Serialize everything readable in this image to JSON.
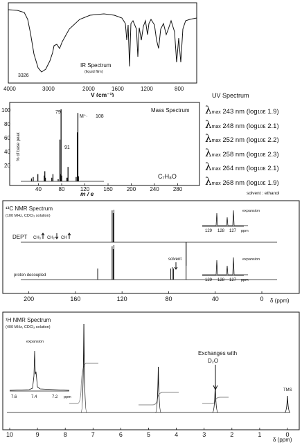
{
  "chart_data": [
    {
      "type": "line",
      "title": "IR Spectrum",
      "subtitle": "(liquid film)",
      "xlabel": "V (cm⁻¹)",
      "xlim": [
        4000,
        400
      ],
      "x_ticks": [
        "4000",
        "3000",
        "2000",
        "1600",
        "1200",
        "800"
      ],
      "annotations": [
        "3326"
      ],
      "peaks_cm": [
        3326,
        3030,
        2880,
        1495,
        1455,
        1210,
        1020,
        735,
        697
      ]
    },
    {
      "type": "bar",
      "title": "Mass Spectrum",
      "ylabel": "% of base peak",
      "xlabel": "m / e",
      "xlim": [
        0,
        320
      ],
      "ylim": [
        0,
        100
      ],
      "x_ticks": [
        "40",
        "80",
        "120",
        "160",
        "200",
        "240",
        "280"
      ],
      "y_ticks": [
        "20",
        "40",
        "60",
        "80",
        "100"
      ],
      "formula": "C₇H₈O",
      "labels": {
        "p79": "79",
        "p91": "91",
        "m_plus": "M⁺·",
        "m108": "108"
      },
      "x": [
        28,
        31,
        39,
        50,
        51,
        52,
        63,
        65,
        74,
        77,
        78,
        79,
        80,
        89,
        90,
        91,
        105,
        107,
        108,
        109
      ],
      "values": [
        4,
        6,
        10,
        8,
        14,
        5,
        5,
        10,
        3,
        58,
        10,
        100,
        8,
        5,
        5,
        20,
        6,
        68,
        95,
        7
      ]
    },
    {
      "type": "table",
      "title": "UV Spectrum",
      "rows": [
        {
          "nm": "243 nm",
          "loge": "1.9)"
        },
        {
          "nm": "248 nm",
          "loge": "2.1)"
        },
        {
          "nm": "252 nm",
          "loge": "2.2)"
        },
        {
          "nm": "258 nm",
          "loge": "2.3)"
        },
        {
          "nm": "264 nm",
          "loge": "2.1)"
        },
        {
          "nm": "268 nm",
          "loge": "1.9)"
        }
      ],
      "lambda": "λ",
      "max_sub": "max",
      "log_prefix": "(log",
      "log_sub": "10",
      "epsilon": "ε",
      "solvent": "solvent : ethanol"
    },
    {
      "type": "line",
      "title": "¹³C NMR Spectrum",
      "subtitle": "(100 MHz, CDCl₃ solution)",
      "xlabel": "δ (ppm)",
      "xlim": [
        220,
        0
      ],
      "x_ticks": [
        "200",
        "160",
        "120",
        "80",
        "40",
        "0"
      ],
      "dept_label": "DEPT",
      "dept_legend": [
        "CH₃",
        "CH₂",
        "CH"
      ],
      "decoupled_label": "proton decoupled",
      "solvent_label": "solvent",
      "expansion_label": "expansion",
      "expansion_ticks": [
        "129",
        "128",
        "127",
        "ppm"
      ],
      "dept_peaks_ppm": [
        128.5,
        127.6,
        127.0,
        65.0
      ],
      "decoupled_peaks_ppm": [
        140.9,
        128.5,
        127.6,
        127.0,
        77.0,
        65.0
      ]
    },
    {
      "type": "line",
      "title": "¹H NMR Spectrum",
      "subtitle": "(400 MHz, CDCl₃ solution)",
      "xlabel": "δ (ppm)",
      "xlim": [
        10,
        0
      ],
      "x_ticks": [
        "10",
        "9",
        "8",
        "7",
        "6",
        "5",
        "4",
        "3",
        "2",
        "1",
        "0"
      ],
      "expansion_label": "expansion",
      "expansion_ticks": [
        "7.6",
        "7.4",
        "7.2",
        "ppm"
      ],
      "exchange_note": [
        "Exchanges with",
        "D₂O"
      ],
      "tms_label": "TMS",
      "peaks_ppm": [
        7.33,
        4.65,
        2.6,
        0
      ]
    }
  ]
}
